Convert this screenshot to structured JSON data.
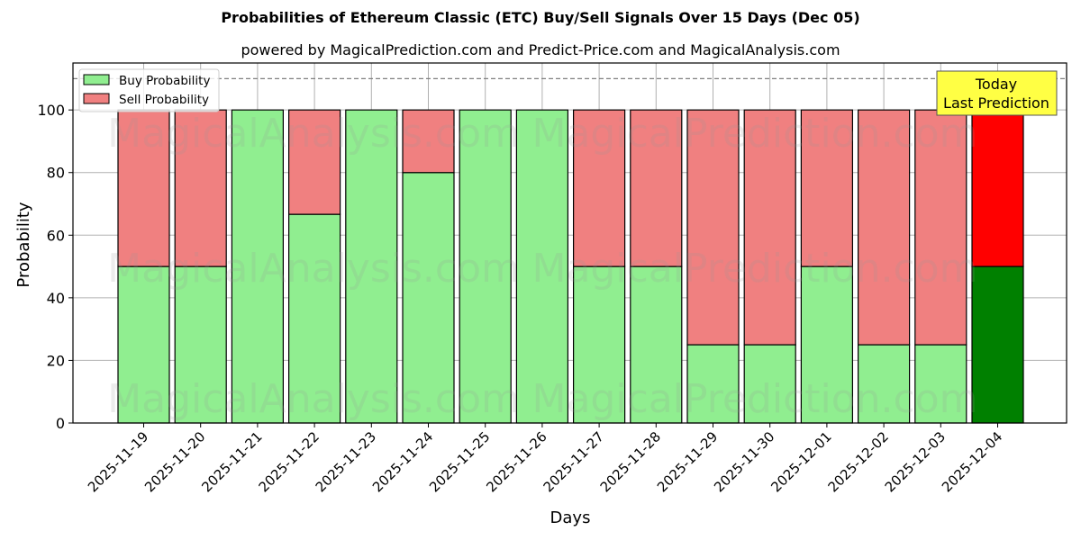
{
  "title": "Probabilities of Ethereum Classic (ETC) Buy/Sell Signals Over 15 Days (Dec 05)",
  "subtitle": "powered by MagicalPrediction.com and Predict-Price.com and MagicalAnalysis.com",
  "watermarks": [
    "MagicalAnalysis.com",
    "MagicalPrediction.com"
  ],
  "annotation": {
    "line1": "Today",
    "line2": "Last Prediction"
  },
  "colors": {
    "buy": "#90ee90",
    "sell": "#f08080",
    "today_buy": "#008000",
    "today_sell": "#ff0000",
    "annotation_bg": "#ffff44"
  },
  "chart_data": {
    "type": "bar",
    "stacked": true,
    "title": "Probabilities of Ethereum Classic (ETC) Buy/Sell Signals Over 15 Days (Dec 05)",
    "subtitle": "powered by MagicalPrediction.com and Predict-Price.com and MagicalAnalysis.com",
    "xlabel": "Days",
    "ylabel": "Probability",
    "ylim": [
      0,
      115
    ],
    "yticks": [
      0,
      20,
      40,
      60,
      80,
      100
    ],
    "reference_line": 110,
    "grid": true,
    "legend_position": "upper left",
    "categories": [
      "2025-11-19",
      "2025-11-20",
      "2025-11-21",
      "2025-11-22",
      "2025-11-23",
      "2025-11-24",
      "2025-11-25",
      "2025-11-26",
      "2025-11-27",
      "2025-11-28",
      "2025-11-29",
      "2025-11-30",
      "2025-12-01",
      "2025-12-02",
      "2025-12-03",
      "2025-12-04"
    ],
    "series": [
      {
        "name": "Buy Probability",
        "values": [
          50,
          50,
          100,
          66.67,
          100,
          80,
          100,
          100,
          50,
          50,
          25,
          25,
          50,
          25,
          25,
          50
        ]
      },
      {
        "name": "Sell Probability",
        "values": [
          50,
          50,
          0,
          33.33,
          0,
          20,
          0,
          0,
          50,
          50,
          75,
          75,
          50,
          75,
          75,
          50
        ]
      }
    ],
    "highlight_index": 15,
    "annotation": "Today\nLast Prediction"
  }
}
